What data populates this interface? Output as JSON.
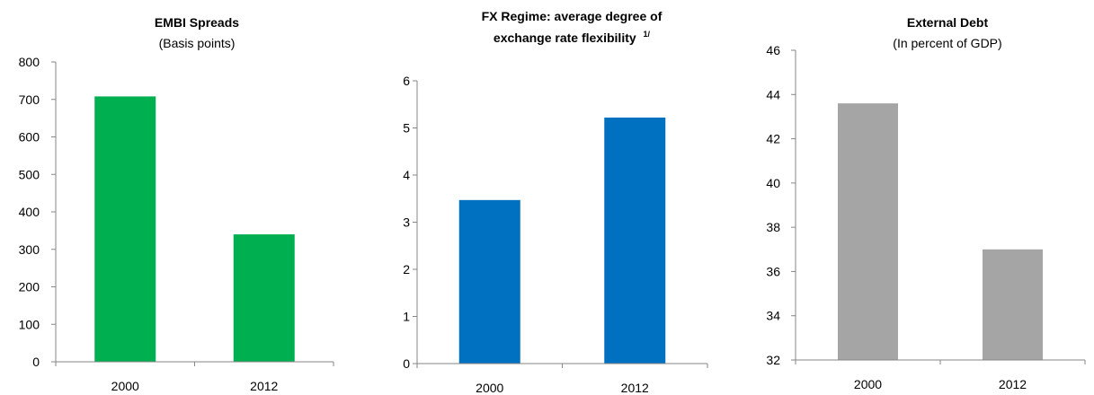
{
  "chart_data": [
    {
      "type": "bar",
      "title": "EMBI Spreads",
      "subtitle": "(Basis points)",
      "categories": [
        "2000",
        "2012"
      ],
      "values": [
        708,
        340
      ],
      "ylim": [
        0,
        800
      ],
      "yticks": [
        0,
        100,
        200,
        300,
        400,
        500,
        600,
        700,
        800
      ],
      "color": "#00B050",
      "grid": false
    },
    {
      "type": "bar",
      "title": "FX Regime: average degree of",
      "title_line2": "exchange rate flexibility",
      "title_sup": "1/",
      "categories": [
        "2000",
        "2012"
      ],
      "values": [
        3.47,
        5.22
      ],
      "ylim": [
        0,
        6
      ],
      "yticks": [
        0,
        1,
        2,
        3,
        4,
        5,
        6
      ],
      "color": "#0070C0",
      "grid": false
    },
    {
      "type": "bar",
      "title": "External Debt",
      "subtitle": "(In percent of GDP)",
      "categories": [
        "2000",
        "2012"
      ],
      "values": [
        43.6,
        37.0
      ],
      "ylim": [
        32,
        46
      ],
      "yticks": [
        32,
        34,
        36,
        38,
        40,
        42,
        44,
        46
      ],
      "color": "#A5A5A5",
      "grid": false
    }
  ]
}
